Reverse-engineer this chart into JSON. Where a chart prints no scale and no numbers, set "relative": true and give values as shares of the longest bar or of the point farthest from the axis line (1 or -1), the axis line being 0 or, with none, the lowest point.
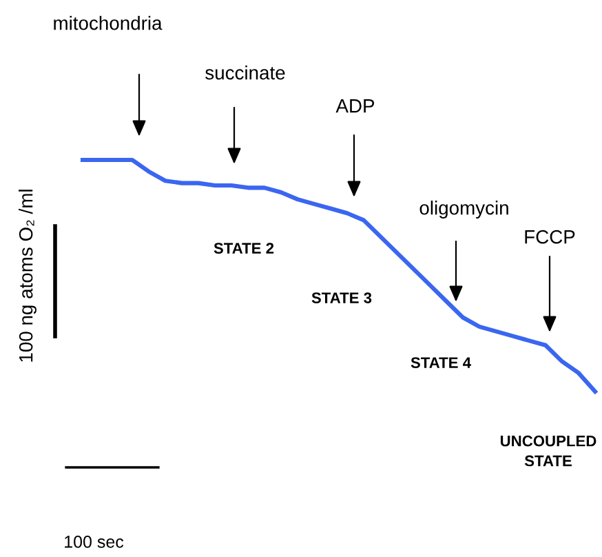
{
  "chart_data": {
    "type": "line",
    "relative": true,
    "categories": [
      null,
      null,
      null,
      null,
      null,
      null,
      null,
      null,
      null,
      null,
      null,
      null,
      null,
      null,
      null,
      null,
      null,
      null,
      null,
      null,
      null,
      null,
      null,
      null,
      null,
      null,
      null,
      null,
      null,
      null,
      null,
      null
    ],
    "series": [
      {
        "color": "#3a66f0",
        "values": [
          1.0,
          1.0,
          1.0,
          1.0,
          0.95,
          0.91,
          0.9,
          0.9,
          0.89,
          0.89,
          0.88,
          0.88,
          0.86,
          0.83,
          0.81,
          0.79,
          0.77,
          0.74,
          0.67,
          0.6,
          0.53,
          0.46,
          0.39,
          0.32,
          0.28,
          0.26,
          0.24,
          0.22,
          0.2,
          0.13,
          0.08,
          0.0
        ]
      }
    ],
    "annotations": [
      "mitochondria",
      "succinate",
      "ADP",
      "oligomycin",
      "FCCP",
      "STATE 2",
      "STATE 3",
      "STATE 4",
      "UNCOUPLED\nSTATE",
      "100 ng atoms O₂ /ml",
      "100 sec"
    ]
  }
}
